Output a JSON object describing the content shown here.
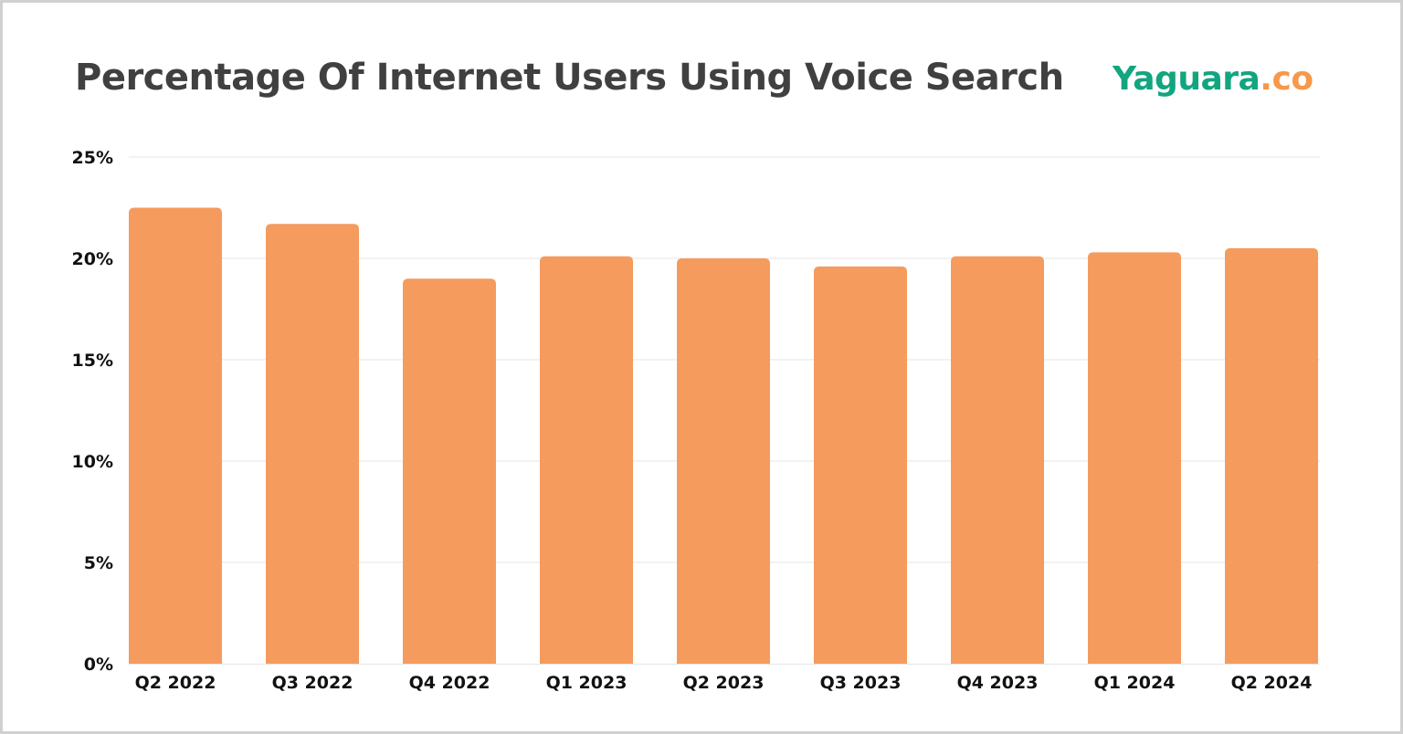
{
  "chart_data": {
    "type": "bar",
    "title": "Percentage Of Internet Users Using Voice Search",
    "categories": [
      "Q2 2022",
      "Q3 2022",
      "Q4 2022",
      "Q1 2023",
      "Q2 2023",
      "Q3 2023",
      "Q4 2023",
      "Q1 2024",
      "Q2 2024"
    ],
    "values": [
      22.5,
      21.7,
      19.0,
      20.1,
      20.0,
      19.6,
      20.1,
      20.3,
      20.5
    ],
    "xlabel": "",
    "ylabel": "",
    "ylim": [
      0,
      25
    ],
    "yticks": [
      "0%",
      "5%",
      "10%",
      "15%",
      "20%",
      "25%"
    ],
    "grid": true,
    "bar_color": "#f59b5e"
  },
  "logo": {
    "main": "Yaguara",
    "suffix": ".co",
    "main_color": "#12a57f",
    "suffix_color": "#f7994a"
  }
}
